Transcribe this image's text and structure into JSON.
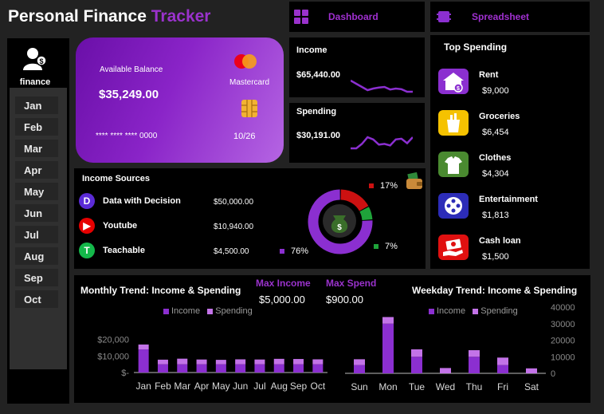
{
  "header": {
    "title_main": "Personal Finance",
    "title_accent": "Tracker",
    "nav": [
      {
        "label": "Dashboard",
        "icon": "dashboard-icon"
      },
      {
        "label": "Spreadsheet",
        "icon": "spreadsheet-icon"
      }
    ]
  },
  "sidebar": {
    "user_label": "finance",
    "months": [
      "Jan",
      "Feb",
      "Mar",
      "Apr",
      "May",
      "Jun",
      "Jul",
      "Aug",
      "Sep",
      "Oct"
    ]
  },
  "card": {
    "balance_label": "Available Balance",
    "balance_value": "$35,249.00",
    "brand": "Mastercard",
    "number": "**** **** **** 0000",
    "expiry": "10/26"
  },
  "income": {
    "label": "Income",
    "value": "$65,440.00",
    "sparkline": [
      6,
      5,
      4,
      3,
      3.5,
      3.8,
      4,
      3.2,
      3.5,
      3.3,
      2.5,
      2.5
    ]
  },
  "spending": {
    "label": "Spending",
    "value": "$30,191.00",
    "sparkline": [
      2,
      2,
      2.6,
      3.5,
      3.2,
      2.5,
      2.6,
      2.4,
      3.2,
      3.3,
      2.7,
      3.5
    ]
  },
  "income_sources": {
    "title": "Income Sources",
    "items": [
      {
        "name": "Data with Decision",
        "amount": "$50,000.00",
        "icon": "data-with-decision-icon",
        "color": "#5b2bd6",
        "glyph": "D"
      },
      {
        "name": "Youtube",
        "amount": "$10,940.00",
        "icon": "youtube-icon",
        "color": "#e60000",
        "glyph": "▶"
      },
      {
        "name": "Teachable",
        "amount": "$4,500.00",
        "icon": "teachable-icon",
        "color": "#14b84a",
        "glyph": "T"
      }
    ],
    "donut": {
      "slices": [
        {
          "label": "76%",
          "value": 76,
          "color": "#8b2fd0"
        },
        {
          "label": "17%",
          "value": 17,
          "color": "#cc1111"
        },
        {
          "label": "7%",
          "value": 7,
          "color": "#1fa33a"
        }
      ]
    }
  },
  "top_spending": {
    "title": "Top Spending",
    "items": [
      {
        "name": "Rent",
        "amount": "$9,000",
        "icon": "house-money-icon",
        "color": "#8b2fd0"
      },
      {
        "name": "Groceries",
        "amount": "$6,454",
        "icon": "grocery-bag-icon",
        "color": "#f5c200"
      },
      {
        "name": "Clothes",
        "amount": "$4,304",
        "icon": "shirt-icon",
        "color": "#4a8a30"
      },
      {
        "name": "Entertainment",
        "amount": "$1,813",
        "icon": "film-reel-icon",
        "color": "#2c2cb8"
      },
      {
        "name": "Cash loan",
        "amount": "$1,500",
        "icon": "cash-hand-icon",
        "color": "#e01010"
      }
    ]
  },
  "kpis": {
    "max_income_label": "Max Income",
    "max_income_value": "$5,000.00",
    "max_spend_label": "Max Spend",
    "max_spend_value": "$900.00"
  },
  "colors": {
    "income": "#8b2fd0",
    "spending": "#c373e8",
    "accent": "#9a32cc"
  },
  "chart_data": [
    {
      "type": "bar",
      "title": "Monthly Trend: Income & Spending",
      "categories": [
        "Jan",
        "Feb",
        "Mar",
        "Apr",
        "May",
        "Jun",
        "Jul",
        "Aug",
        "Sep",
        "Oct"
      ],
      "series": [
        {
          "name": "Income",
          "values": [
            14000,
            5000,
            5000,
            5000,
            5000,
            5000,
            5000,
            5000,
            5000,
            5000
          ]
        },
        {
          "name": "Spending",
          "values": [
            3000,
            2800,
            3400,
            2900,
            2700,
            3000,
            2900,
            3300,
            3200,
            3000
          ]
        }
      ],
      "ylim": [
        0,
        30000
      ],
      "yticks": [
        "$-",
        "$10,000",
        "$20,000"
      ],
      "stacked": true,
      "legend": "top"
    },
    {
      "type": "bar",
      "title": "Weekday Trend: Income & Spending",
      "categories": [
        "Sun",
        "Mon",
        "Tue",
        "Wed",
        "Thu",
        "Fri",
        "Sat"
      ],
      "series": [
        {
          "name": "Income",
          "values": [
            5000,
            30000,
            10000,
            0,
            10000,
            5000,
            0
          ]
        },
        {
          "name": "Spending",
          "values": [
            3500,
            4000,
            4500,
            3200,
            4000,
            4500,
            3000
          ]
        }
      ],
      "ylim": [
        0,
        40000
      ],
      "yticks": [
        "0",
        "10000",
        "20000",
        "30000",
        "40000"
      ],
      "stacked": true,
      "legend": "top"
    }
  ]
}
